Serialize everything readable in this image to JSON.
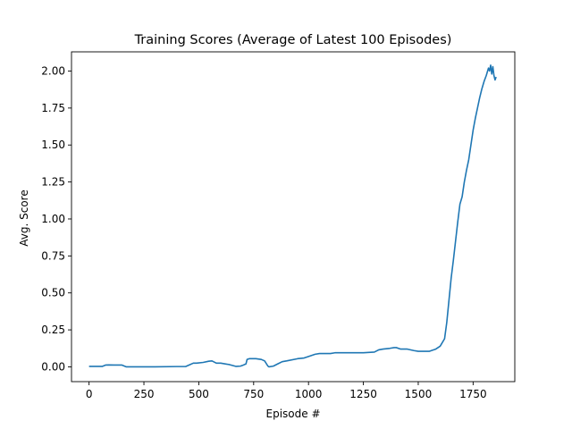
{
  "chart_data": {
    "type": "line",
    "title": "Training Scores (Average of Latest 100 Episodes)",
    "xlabel": "Episode #",
    "ylabel": "Avg. Score",
    "xlim": [
      -80,
      1940
    ],
    "ylim": [
      -0.1,
      2.13
    ],
    "xticks": [
      0,
      250,
      500,
      750,
      1000,
      1250,
      1500,
      1750
    ],
    "xtick_labels": [
      "0",
      "250",
      "500",
      "750",
      "1000",
      "1250",
      "1500",
      "1750"
    ],
    "yticks": [
      0.0,
      0.25,
      0.5,
      0.75,
      1.0,
      1.25,
      1.5,
      1.75,
      2.0
    ],
    "ytick_labels": [
      "0.00",
      "0.25",
      "0.50",
      "0.75",
      "1.00",
      "1.25",
      "1.50",
      "1.75",
      "2.00"
    ],
    "grid": false,
    "series": [
      {
        "color": "#1f77b4",
        "x": [
          0,
          30,
          60,
          75,
          90,
          130,
          150,
          170,
          250,
          300,
          400,
          440,
          455,
          475,
          490,
          520,
          545,
          560,
          580,
          600,
          640,
          670,
          690,
          700,
          715,
          720,
          730,
          760,
          785,
          800,
          815,
          820,
          840,
          860,
          880,
          900,
          950,
          980,
          1000,
          1030,
          1050,
          1100,
          1120,
          1200,
          1250,
          1300,
          1320,
          1340,
          1370,
          1390,
          1400,
          1420,
          1440,
          1450,
          1480,
          1500,
          1550,
          1560,
          1580,
          1600,
          1620,
          1630,
          1640,
          1650,
          1660,
          1670,
          1680,
          1690,
          1700,
          1710,
          1720,
          1730,
          1740,
          1750,
          1760,
          1770,
          1780,
          1790,
          1800,
          1810,
          1820,
          1825,
          1830,
          1835,
          1840,
          1845,
          1850,
          1855
        ],
        "y": [
          0.003,
          0.003,
          0.003,
          0.012,
          0.013,
          0.012,
          0.012,
          0.0,
          0.0,
          0.0,
          0.002,
          0.002,
          0.012,
          0.025,
          0.025,
          0.03,
          0.038,
          0.04,
          0.025,
          0.025,
          0.015,
          0.003,
          0.005,
          0.01,
          0.02,
          0.05,
          0.055,
          0.055,
          0.05,
          0.04,
          0.005,
          0.0,
          0.005,
          0.02,
          0.035,
          0.04,
          0.055,
          0.06,
          0.07,
          0.085,
          0.09,
          0.09,
          0.095,
          0.095,
          0.095,
          0.1,
          0.115,
          0.12,
          0.125,
          0.13,
          0.13,
          0.12,
          0.12,
          0.12,
          0.11,
          0.105,
          0.105,
          0.11,
          0.12,
          0.14,
          0.19,
          0.3,
          0.45,
          0.6,
          0.72,
          0.85,
          0.98,
          1.1,
          1.15,
          1.25,
          1.33,
          1.4,
          1.5,
          1.6,
          1.68,
          1.75,
          1.82,
          1.88,
          1.93,
          1.97,
          2.02,
          2.0,
          2.04,
          1.98,
          2.03,
          1.97,
          1.94,
          1.96
        ]
      }
    ]
  }
}
